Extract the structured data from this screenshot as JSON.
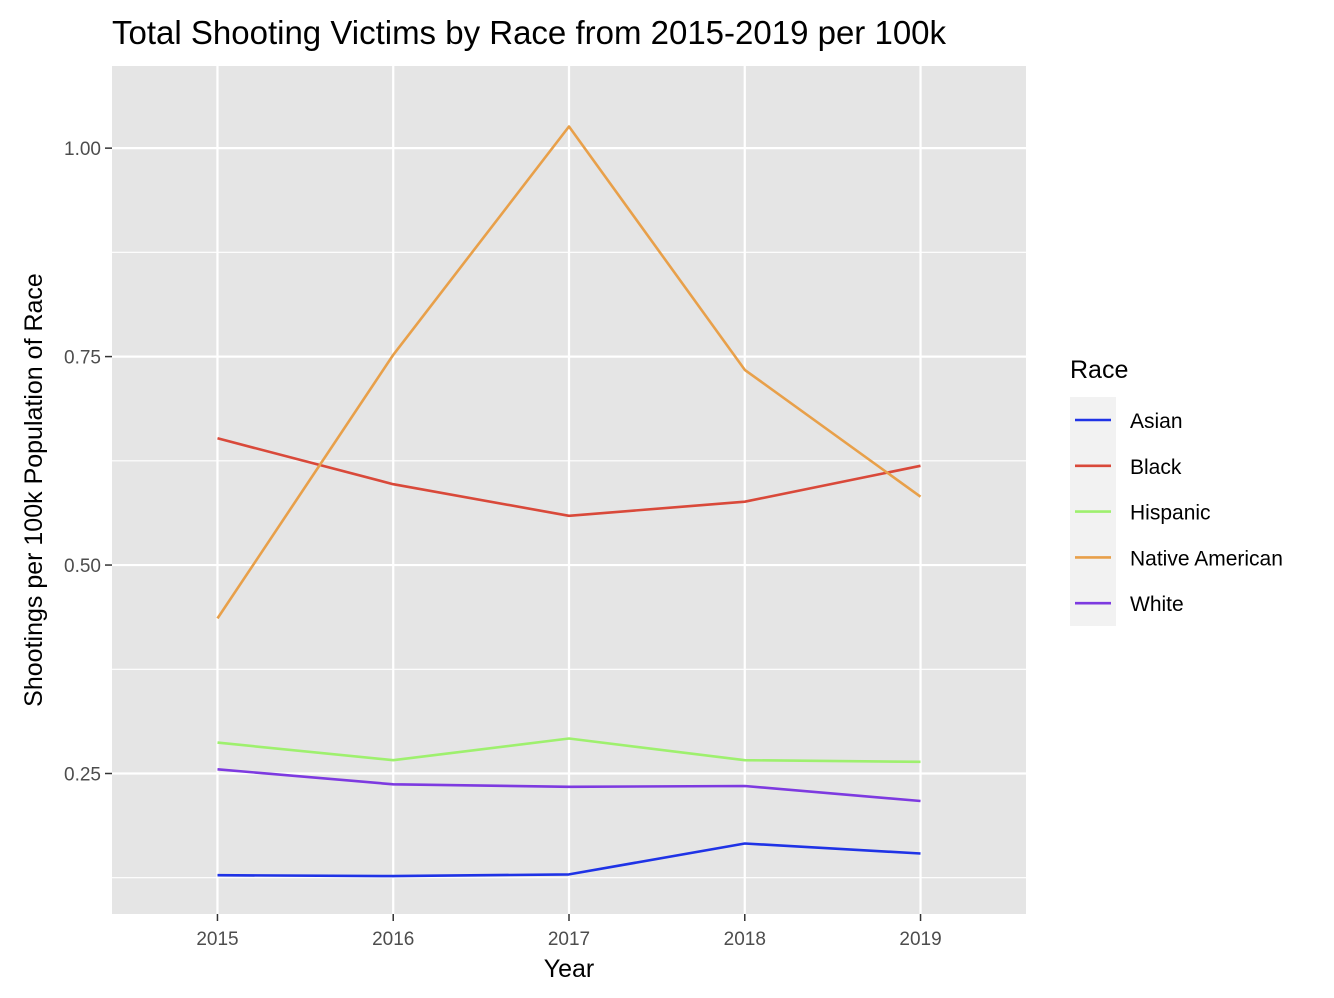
{
  "chart_data": {
    "type": "line",
    "title": "Total Shooting Victims by Race from 2015-2019 per 100k",
    "xlabel": "Year",
    "ylabel": "Shootings per 100k Population of Race",
    "x": [
      2015,
      2016,
      2017,
      2018,
      2019
    ],
    "xlim": [
      2014.4,
      2019.6
    ],
    "ylim": [
      0.0815,
      1.0985
    ],
    "yticks": [
      0.25,
      0.5,
      0.75,
      1.0
    ],
    "ytick_labels": [
      "0.25",
      "0.50",
      "0.75",
      "1.00"
    ],
    "xtick_labels": [
      "2015",
      "2016",
      "2017",
      "2018",
      "2019"
    ],
    "grid": true,
    "background": "#e5e5e5",
    "legend": {
      "title": "Race",
      "position": "right"
    },
    "series": [
      {
        "name": "Asian",
        "color": "#1f33e6",
        "values": [
          0.128,
          0.127,
          0.129,
          0.166,
          0.154
        ]
      },
      {
        "name": "Black",
        "color": "#d9493a",
        "values": [
          0.652,
          0.597,
          0.559,
          0.576,
          0.619
        ]
      },
      {
        "name": "Hispanic",
        "color": "#9ef06e",
        "values": [
          0.287,
          0.266,
          0.292,
          0.266,
          0.264
        ]
      },
      {
        "name": "Native American",
        "color": "#e8a04a",
        "values": [
          0.436,
          0.752,
          1.026,
          0.734,
          0.582
        ]
      },
      {
        "name": "White",
        "color": "#7d3ae0",
        "values": [
          0.255,
          0.237,
          0.234,
          0.235,
          0.217
        ]
      }
    ]
  }
}
